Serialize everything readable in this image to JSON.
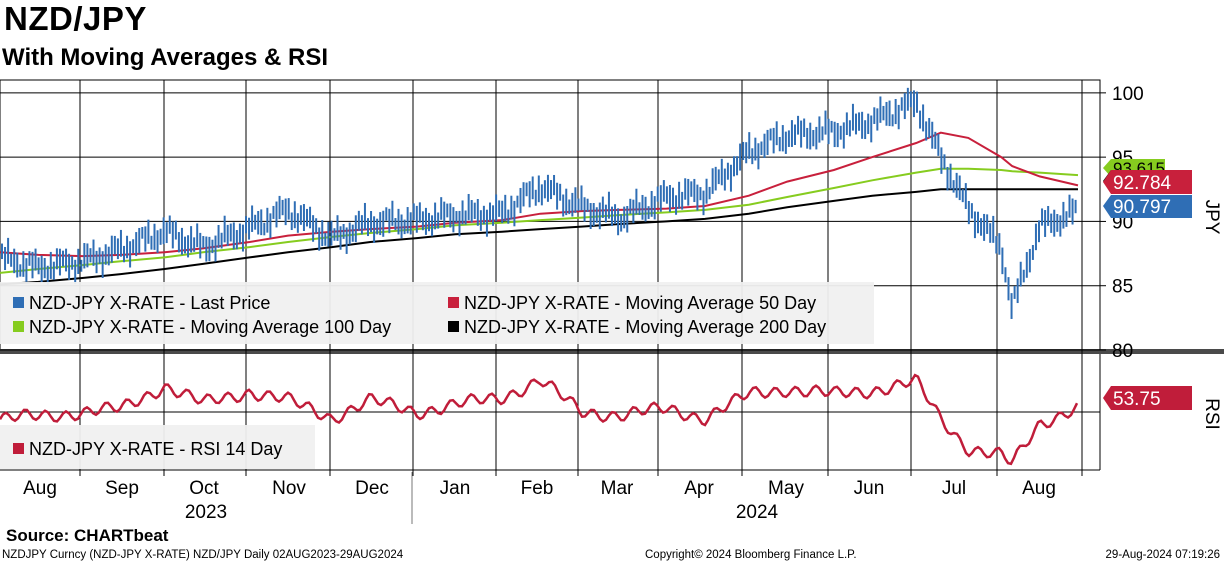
{
  "title": "NZD/JPY",
  "subtitle": "With Moving Averages & RSI",
  "source": "Source:  CHARTbeat",
  "footer": {
    "left": "NZDJPY Curncy (NZD-JPY X-RATE) NZD/JPY  Daily 02AUG2023-29AUG2024",
    "center": "Copyright© 2024 Bloomberg Finance L.P.",
    "right": "29-Aug-2024 07:19:26"
  },
  "colors": {
    "price": "#2f6eb5",
    "ma50": "#c8203c",
    "ma100": "#86cc1f",
    "ma200": "#000000",
    "rsi": "#c01d3a",
    "grid": "#000000"
  },
  "chart_data": [
    {
      "type": "line",
      "panel": "price",
      "ylabel": "JPY",
      "ylim": [
        80,
        101
      ],
      "yticks": [
        80,
        85,
        90,
        95,
        100
      ],
      "x_months": [
        "Aug",
        "Sep",
        "Oct",
        "Nov",
        "Dec",
        "Jan",
        "Feb",
        "Mar",
        "Apr",
        "May",
        "Jun",
        "Jul",
        "Aug"
      ],
      "x_years": [
        "2023",
        "2024"
      ],
      "x_dates": [
        "2023-08-02",
        "2023-08-16",
        "2023-09-01",
        "2023-09-15",
        "2023-10-01",
        "2023-10-15",
        "2023-11-01",
        "2023-11-15",
        "2023-12-01",
        "2023-12-15",
        "2024-01-01",
        "2024-01-15",
        "2024-02-01",
        "2024-02-15",
        "2024-03-01",
        "2024-03-15",
        "2024-04-01",
        "2024-04-15",
        "2024-05-01",
        "2024-05-15",
        "2024-06-01",
        "2024-06-15",
        "2024-07-01",
        "2024-07-10",
        "2024-07-20",
        "2024-08-01",
        "2024-08-05",
        "2024-08-15",
        "2024-08-29"
      ],
      "series": [
        {
          "name": "NZD-JPY X-RATE - Last Price",
          "last_label": "90.797",
          "values": [
            87.2,
            86.4,
            86.9,
            87.8,
            89.2,
            88.0,
            89.5,
            90.9,
            88.7,
            89.9,
            90.1,
            90.5,
            90.6,
            92.7,
            91.1,
            90.3,
            91.9,
            92.2,
            95.4,
            96.7,
            97.0,
            97.8,
            99.3,
            95.0,
            91.0,
            88.0,
            83.3,
            89.6,
            90.8
          ]
        },
        {
          "name": "NZD-JPY X-RATE - Moving Average 50 Day",
          "last_label": "92.784",
          "values": [
            87.6,
            87.4,
            87.3,
            87.4,
            87.6,
            87.9,
            88.4,
            88.9,
            89.2,
            89.4,
            89.6,
            89.9,
            90.1,
            90.6,
            90.8,
            90.9,
            91.0,
            91.2,
            92.0,
            93.1,
            94.0,
            95.0,
            96.1,
            96.9,
            96.5,
            95.0,
            94.3,
            93.5,
            92.8
          ]
        },
        {
          "name": "NZD-JPY X-RATE - Moving Average 100 Day",
          "last_label": "93.615",
          "values": [
            86.0,
            86.3,
            86.6,
            86.9,
            87.2,
            87.6,
            88.0,
            88.4,
            88.8,
            89.1,
            89.4,
            89.7,
            89.9,
            90.1,
            90.3,
            90.5,
            90.7,
            90.9,
            91.3,
            91.9,
            92.6,
            93.2,
            93.8,
            94.1,
            94.1,
            94.0,
            93.9,
            93.8,
            93.6
          ]
        },
        {
          "name": "NZD-JPY X-RATE - Moving Average 200 Day",
          "last_label": "",
          "values": [
            85.1,
            85.3,
            85.6,
            85.9,
            86.3,
            86.7,
            87.2,
            87.6,
            88.0,
            88.4,
            88.7,
            89.0,
            89.2,
            89.4,
            89.6,
            89.8,
            90.0,
            90.2,
            90.6,
            91.1,
            91.6,
            92.0,
            92.3,
            92.5,
            92.5,
            92.5,
            92.5,
            92.5,
            92.5
          ]
        }
      ]
    },
    {
      "type": "line",
      "panel": "rsi",
      "ylabel": "RSI",
      "ylim": [
        10,
        90
      ],
      "series": [
        {
          "name": "NZD-JPY X-RATE - RSI 14 Day",
          "last_label": "53.75",
          "values": [
            45,
            47,
            50,
            52,
            68,
            56,
            64,
            58,
            46,
            58,
            50,
            55,
            60,
            72,
            50,
            48,
            52,
            46,
            62,
            66,
            62,
            65,
            71,
            45,
            25,
            20,
            14,
            42,
            53.75
          ]
        }
      ]
    }
  ]
}
